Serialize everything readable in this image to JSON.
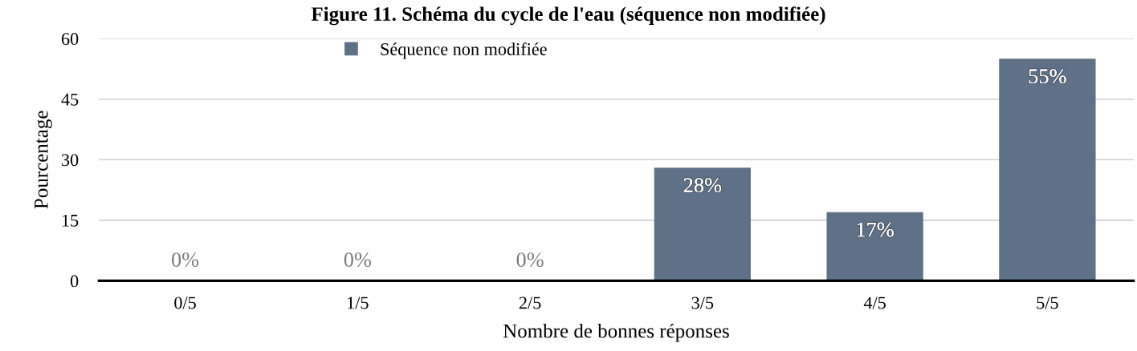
{
  "chart_data": {
    "type": "bar",
    "title": "Figure 11. Schéma du cycle de l'eau (séquence non modifiée)",
    "xlabel": "Nombre de bonnes réponses",
    "ylabel": "Pourcentage",
    "categories": [
      "0/5",
      "1/5",
      "2/5",
      "3/5",
      "4/5",
      "5/5"
    ],
    "series": [
      {
        "name": "Séquence non modifiée",
        "color": "#5f7186",
        "values": [
          0,
          0,
          0,
          28,
          17,
          55
        ],
        "value_labels": [
          "0%",
          "0%",
          "0%",
          "28%",
          "17%",
          "55%"
        ]
      }
    ],
    "ylim": [
      0,
      60
    ],
    "yticks": [
      0,
      15,
      30,
      45,
      60
    ],
    "grid": "y",
    "legend": "top"
  }
}
